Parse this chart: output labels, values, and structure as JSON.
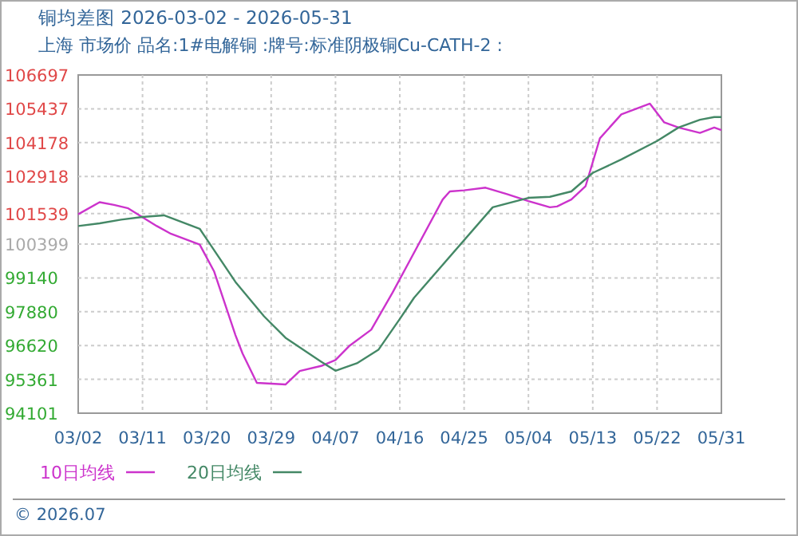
{
  "chart_data": {
    "type": "line",
    "title": "铜均差图  2026-03-02 - 2026-05-31",
    "subtitle": "上海  市场价  品名:1#电解铜  :牌号:标准阴极铜Cu-CATH-2 :",
    "annotations": [
      "© 2026.07"
    ],
    "xlim": [
      "2026-03-02",
      "2026-05-31"
    ],
    "xticks": [
      {
        "value": "2026-03-02",
        "label": "03/02"
      },
      {
        "value": "2026-03-11",
        "label": "03/11"
      },
      {
        "value": "2026-03-20",
        "label": "03/20"
      },
      {
        "value": "2026-03-29",
        "label": "03/29"
      },
      {
        "value": "2026-04-07",
        "label": "04/07"
      },
      {
        "value": "2026-04-16",
        "label": "04/16"
      },
      {
        "value": "2026-04-25",
        "label": "04/25"
      },
      {
        "value": "2026-05-04",
        "label": "05/04"
      },
      {
        "value": "2026-05-13",
        "label": "05/13"
      },
      {
        "value": "2026-05-22",
        "label": "05/22"
      },
      {
        "value": "2026-05-31",
        "label": "05/31"
      }
    ],
    "ylim": [
      94101,
      106697
    ],
    "yticks": [
      94101,
      95361,
      96620,
      97880,
      99140,
      100399,
      101539,
      102918,
      104178,
      105437,
      106697
    ],
    "grid": true,
    "legend": "bottom",
    "series": [
      {
        "name": "10日均线",
        "color": "#cc33cc",
        "x": [
          "2026-03-02",
          "2026-03-05",
          "2026-03-07",
          "2026-03-09",
          "2026-03-13",
          "2026-03-15",
          "2026-03-19",
          "2026-03-21",
          "2026-03-24",
          "2026-03-25",
          "2026-03-27",
          "2026-03-31",
          "2026-04-02",
          "2026-04-05",
          "2026-04-07",
          "2026-04-09",
          "2026-04-12",
          "2026-04-15",
          "2026-04-22",
          "2026-04-23",
          "2026-04-25",
          "2026-04-28",
          "2026-05-01",
          "2026-05-04",
          "2026-05-07",
          "2026-05-08",
          "2026-05-10",
          "2026-05-12",
          "2026-05-14",
          "2026-05-17",
          "2026-05-21",
          "2026-05-23",
          "2026-05-25",
          "2026-05-28",
          "2026-05-30",
          "2026-05-31"
        ],
        "values": [
          101510,
          101960,
          101860,
          101730,
          101070,
          100780,
          100380,
          99390,
          97010,
          96320,
          95230,
          95170,
          95670,
          95860,
          96080,
          96620,
          97210,
          98600,
          102060,
          102360,
          102400,
          102500,
          102260,
          102000,
          101770,
          101800,
          102060,
          102560,
          104340,
          105230,
          105630,
          104930,
          104740,
          104540,
          104740,
          104640
        ]
      },
      {
        "name": "20日均线",
        "color": "#448866",
        "x": [
          "2026-03-02",
          "2026-03-05",
          "2026-03-08",
          "2026-03-11",
          "2026-03-14",
          "2026-03-19",
          "2026-03-24",
          "2026-03-28",
          "2026-03-31",
          "2026-04-05",
          "2026-04-07",
          "2026-04-10",
          "2026-04-13",
          "2026-04-16",
          "2026-04-18",
          "2026-04-29",
          "2026-05-04",
          "2026-05-07",
          "2026-05-10",
          "2026-05-13",
          "2026-05-17",
          "2026-05-22",
          "2026-05-25",
          "2026-05-28",
          "2026-05-30",
          "2026-05-31"
        ],
        "values": [
          101070,
          101170,
          101310,
          101410,
          101470,
          100970,
          98990,
          97710,
          96910,
          96020,
          95680,
          95960,
          96460,
          97610,
          98400,
          101770,
          102120,
          102160,
          102360,
          103050,
          103550,
          104240,
          104740,
          105030,
          105130,
          105130
        ]
      }
    ]
  }
}
